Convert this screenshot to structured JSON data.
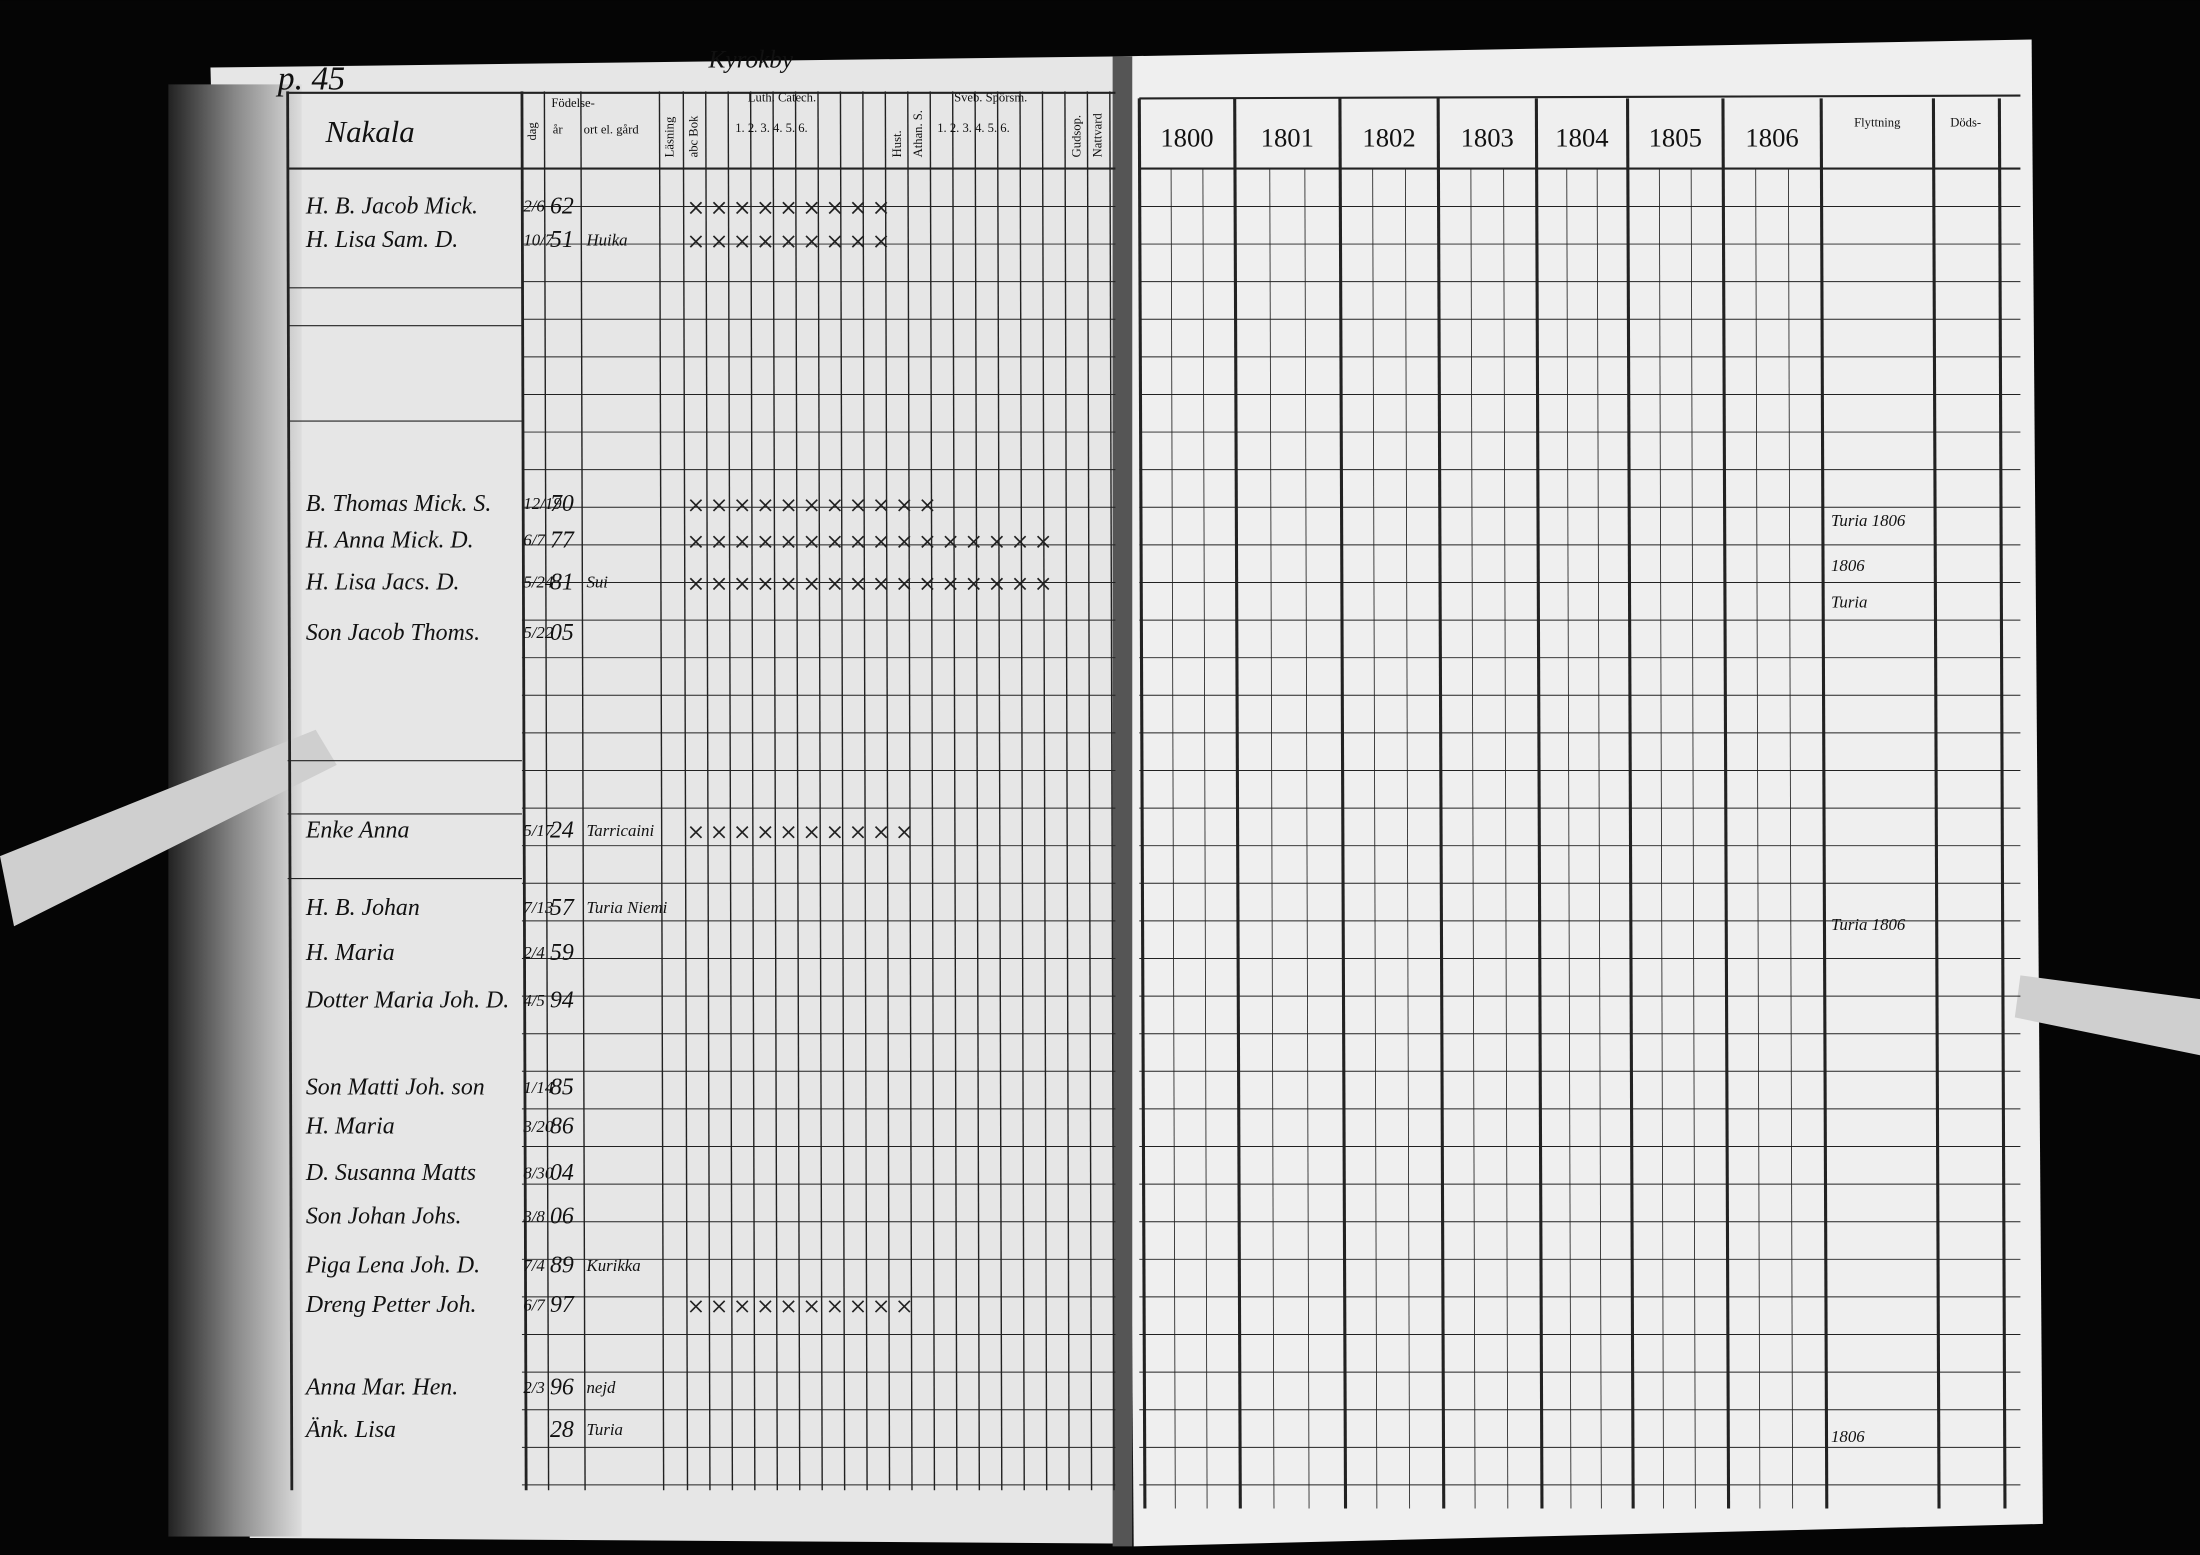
{
  "page_label": "p. 45",
  "village": "Kyrokby",
  "header": {
    "household": "Nakala",
    "birth": "Födelse-",
    "day": "dag",
    "year": "år",
    "place": "ort el. gård",
    "reading": "Läsning",
    "abc": "abc Bok",
    "luther": "Luth. Catech.",
    "luther_parts": "1. 2. 3. 4. 5. 6.",
    "house": "Hust.",
    "athan": "Athan. S.",
    "sveb": "Sveb. Spörsm.",
    "sveb_parts": "1. 2. 3. 4. 5. 6.",
    "communion": "Gudsop.",
    "nattvard": "Nattvard"
  },
  "years": [
    "1800",
    "1801",
    "1802",
    "1803",
    "1804",
    "1805",
    "1806"
  ],
  "moving": "Flyttning",
  "death": "Döds-",
  "rows": [
    {
      "name": "H. B. Jacob Mick.",
      "day": "2/6",
      "year": "62"
    },
    {
      "name": "H. Lisa Sam. D.",
      "day": "10/7",
      "year": "51",
      "place": "Huika"
    },
    {
      "name": "B. Thomas Mick. S.",
      "day": "12/19",
      "year": "70"
    },
    {
      "name": "H. Anna Mick. D.",
      "day": "6/7",
      "year": "77"
    },
    {
      "name": "H. Lisa Jacs. D.",
      "day": "5/24",
      "year": "81",
      "place": "Sui"
    },
    {
      "name": "Son Jacob Thoms.",
      "day": "5/22",
      "year": "05"
    },
    {
      "name": "Enke Anna",
      "day": "5/17",
      "year": "24",
      "place": "Tarricaini"
    },
    {
      "name": "H. B. Johan",
      "day": "7/13",
      "year": "57",
      "place": "Turia Niemi"
    },
    {
      "name": "H. Maria",
      "day": "2/4",
      "year": "59"
    },
    {
      "name": "Dotter Maria Joh. D.",
      "day": "4/5",
      "year": "94"
    },
    {
      "name": "Son Matti Joh. son",
      "day": "1/14",
      "year": "85"
    },
    {
      "name": "H. Maria",
      "day": "3/20",
      "year": "86"
    },
    {
      "name": "D. Susanna Matts",
      "day": "8/30",
      "year": "04"
    },
    {
      "name": "Son Johan Johs.",
      "day": "3/8",
      "year": "06"
    },
    {
      "name": "Piga Lena Joh. D.",
      "day": "7/4",
      "year": "89",
      "place": "Kurikka"
    },
    {
      "name": "Dreng Petter Joh.",
      "day": "6/7",
      "year": "97"
    },
    {
      "name": "Anna Mar. Hen.",
      "day": "2/3",
      "year": "96",
      "place": "nejd"
    },
    {
      "name": "Änk. Lisa",
      "year": "28",
      "place": "Turia"
    }
  ],
  "notes": [
    "Turia 1806",
    "1806",
    "Turia",
    "Turia 1806",
    "1806"
  ]
}
